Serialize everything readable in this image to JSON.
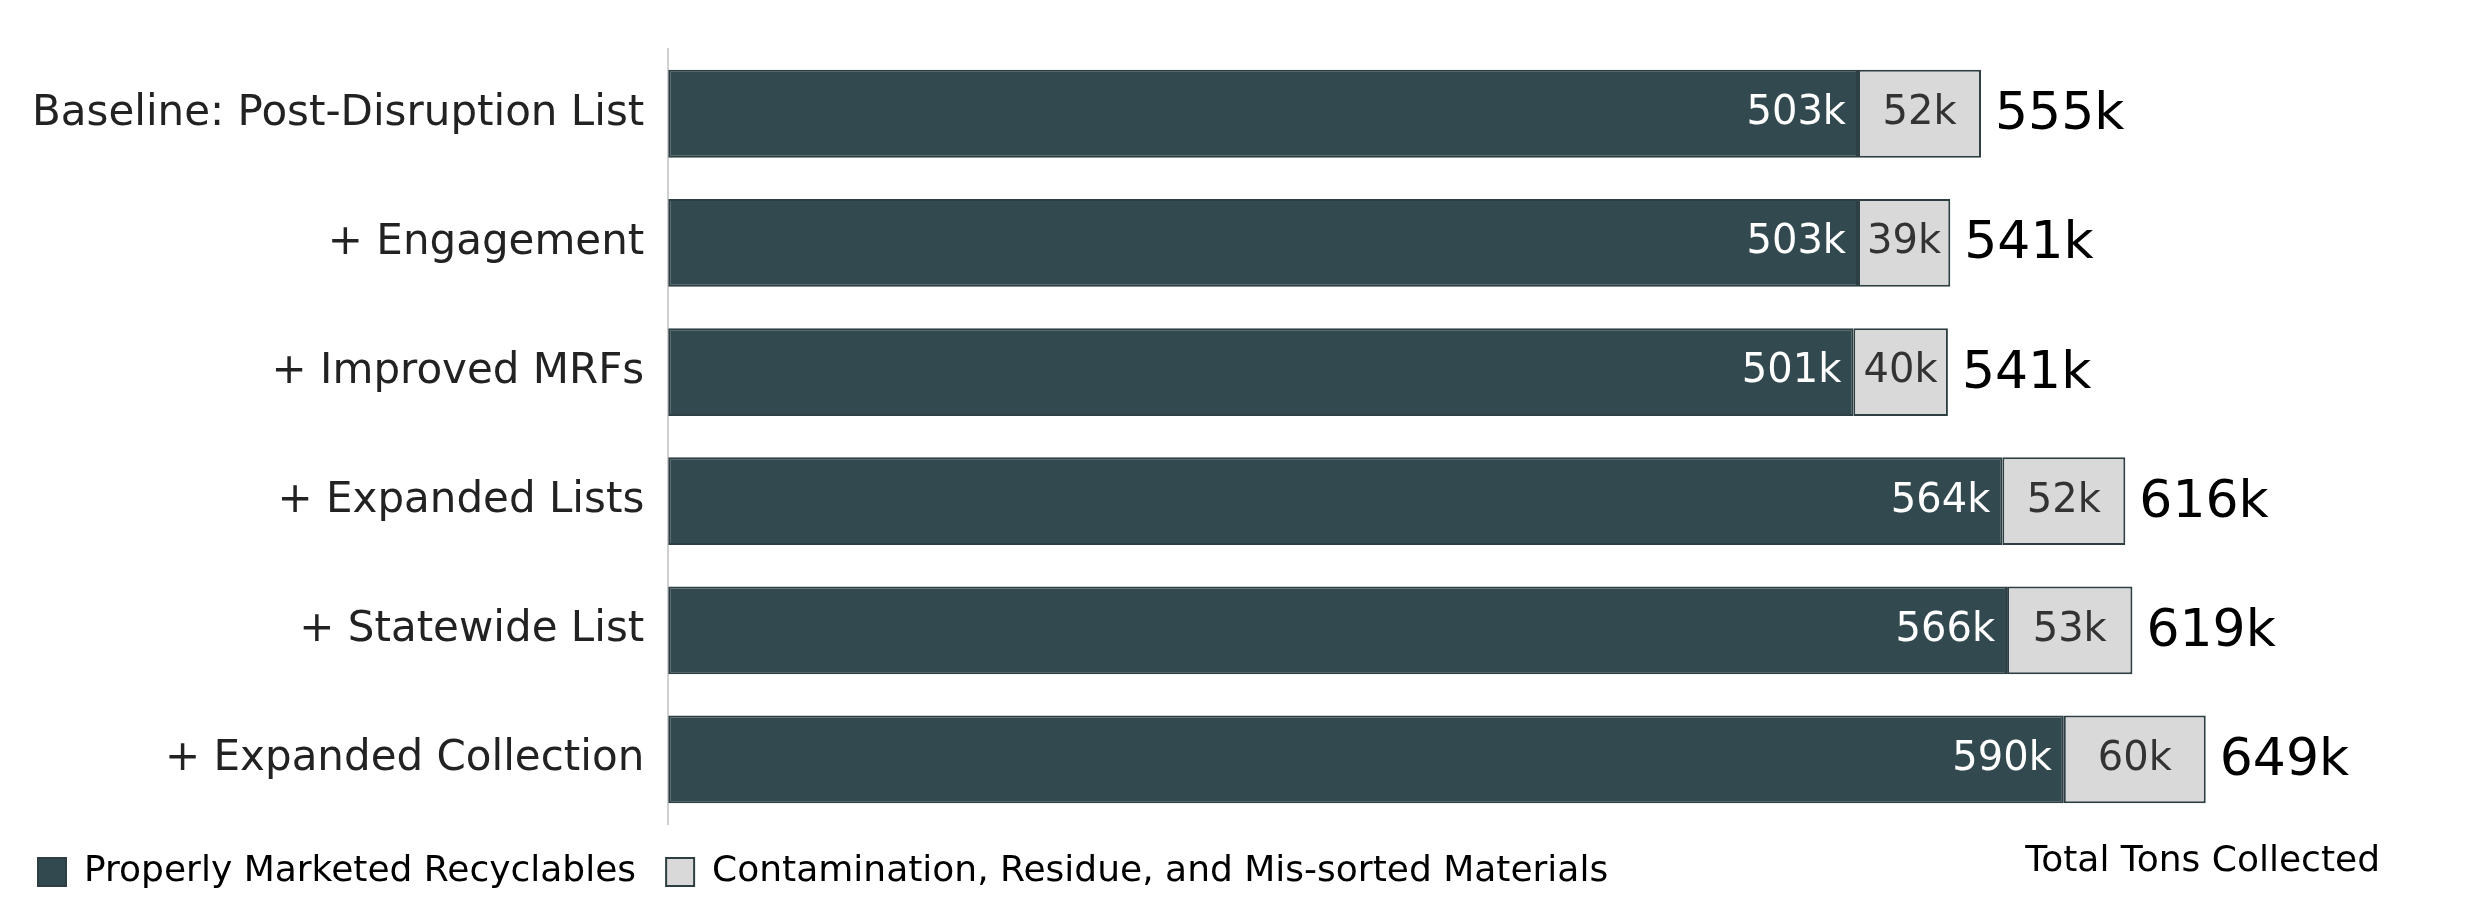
{
  "chart_data": {
    "type": "bar",
    "orientation": "horizontal",
    "stacked": true,
    "categories": [
      "Baseline: Post-Disruption List",
      "+ Engagement",
      "+ Improved MRFs",
      "+ Expanded Lists",
      "+ Statewide List",
      "+ Expanded Collection"
    ],
    "series": [
      {
        "name": "Properly Marketed Recyclables",
        "color": "#324a4f",
        "values": [
          503,
          503,
          501,
          564,
          566,
          590
        ],
        "value_labels": [
          "503k",
          "503k",
          "501k",
          "564k",
          "566k",
          "590k"
        ]
      },
      {
        "name": "Contamination, Residue, and Mis-sorted Materials",
        "color": "#d9d9d9",
        "values": [
          52,
          39,
          40,
          52,
          53,
          60
        ],
        "value_labels": [
          "52k",
          "39k",
          "40k",
          "52k",
          "53k",
          "60k"
        ]
      }
    ],
    "totals": [
      "555k",
      "541k",
      "541k",
      "616k",
      "619k",
      "649k"
    ],
    "tick_labels": "y",
    "legend": "bottom",
    "annotations": [
      "Total Tons Collected"
    ]
  }
}
